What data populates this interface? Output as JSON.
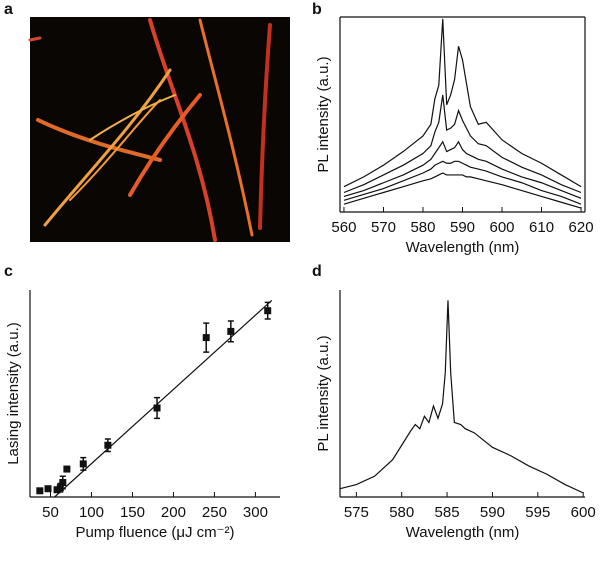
{
  "chart_data": [
    {
      "type": "image",
      "label": "a"
    },
    {
      "type": "line",
      "label": "b",
      "xlabel": "Wavelength (nm)",
      "ylabel": "PL intensity (a.u.)",
      "box": true,
      "x": [
        560,
        565,
        570,
        575,
        580,
        582,
        583,
        584,
        585,
        586,
        587,
        588,
        589,
        590,
        591,
        592,
        594,
        596,
        600,
        605,
        610,
        615,
        620
      ],
      "series": [
        {
          "color": "#111111",
          "values": [
            1.3,
            1.8,
            2.4,
            3.1,
            3.9,
            4.5,
            5.8,
            6.5,
            9.9,
            5.5,
            6.0,
            6.8,
            8.5,
            7.8,
            6.6,
            5.4,
            4.5,
            4.6,
            3.7,
            3.0,
            2.5,
            1.9,
            1.3
          ]
        },
        {
          "color": "#111111",
          "values": [
            1.0,
            1.4,
            1.9,
            2.4,
            3.0,
            3.4,
            4.1,
            4.6,
            6.0,
            4.2,
            4.3,
            4.5,
            5.2,
            4.7,
            4.3,
            3.9,
            3.5,
            3.4,
            2.8,
            2.3,
            1.9,
            1.4,
            1.0
          ]
        },
        {
          "color": "#111111",
          "values": [
            0.8,
            1.1,
            1.5,
            1.9,
            2.4,
            2.7,
            3.0,
            3.3,
            3.6,
            3.1,
            3.2,
            3.3,
            3.6,
            3.2,
            3.0,
            2.9,
            2.7,
            2.6,
            2.2,
            1.8,
            1.5,
            1.1,
            0.7
          ]
        },
        {
          "color": "#111111",
          "values": [
            0.6,
            0.9,
            1.2,
            1.6,
            2.0,
            2.2,
            2.4,
            2.5,
            2.6,
            2.5,
            2.5,
            2.6,
            2.6,
            2.5,
            2.4,
            2.3,
            2.2,
            2.1,
            1.8,
            1.5,
            1.1,
            0.8,
            0.4
          ]
        },
        {
          "color": "#111111",
          "values": [
            0.4,
            0.7,
            1.0,
            1.3,
            1.6,
            1.7,
            1.8,
            1.9,
            2.0,
            1.9,
            1.9,
            1.9,
            1.9,
            1.9,
            1.8,
            1.8,
            1.7,
            1.6,
            1.4,
            1.1,
            0.8,
            0.5,
            0.2
          ]
        }
      ],
      "xlim": [
        559,
        621
      ],
      "xticks": [
        560,
        570,
        580,
        590,
        600,
        610,
        620
      ],
      "ylim": [
        0,
        10
      ]
    },
    {
      "type": "scatter",
      "label": "c",
      "xlabel": "Pump fluence (μJ cm⁻²)",
      "ylabel": "Lasing intensity (a.u.)",
      "x": [
        37,
        47,
        58,
        62,
        65,
        70,
        90,
        120,
        180,
        240,
        270,
        315
      ],
      "values": [
        0.3,
        0.4,
        0.35,
        0.45,
        0.7,
        1.35,
        1.6,
        2.5,
        4.3,
        7.7,
        8.0,
        9.0
      ],
      "errors": [
        0,
        0,
        0,
        0.2,
        0.3,
        0.1,
        0.3,
        0.3,
        0.5,
        0.7,
        0.5,
        0.4
      ],
      "color": "#111111",
      "fit": {
        "x": [
          55,
          320
        ],
        "values": [
          0,
          9.5
        ]
      },
      "xlim": [
        25,
        330
      ],
      "xticks": [
        50,
        100,
        150,
        200,
        250,
        300
      ],
      "ylim": [
        0,
        10
      ]
    },
    {
      "type": "line",
      "label": "d",
      "xlabel": "Wavelength (nm)",
      "ylabel": "PL intensity (a.u.)",
      "x": [
        573.2,
        575,
        577,
        579,
        580,
        581,
        581.5,
        582,
        582.5,
        583,
        583.5,
        584,
        584.5,
        584.8,
        585.1,
        585.4,
        585.8,
        586.5,
        587,
        588,
        590,
        592,
        594,
        596,
        598,
        600
      ],
      "series": [
        {
          "color": "#111111",
          "values": [
            0.4,
            0.6,
            1.0,
            1.8,
            2.5,
            3.2,
            3.5,
            3.3,
            3.9,
            3.6,
            4.4,
            3.8,
            4.5,
            6.0,
            9.5,
            6.0,
            3.6,
            3.5,
            3.3,
            3.1,
            2.4,
            2.0,
            1.5,
            1.1,
            0.6,
            0.2
          ]
        }
      ],
      "xlim": [
        573.2,
        600.2
      ],
      "xticks": [
        575,
        580,
        585,
        590,
        595,
        600
      ],
      "ylim": [
        0,
        10
      ]
    }
  ]
}
